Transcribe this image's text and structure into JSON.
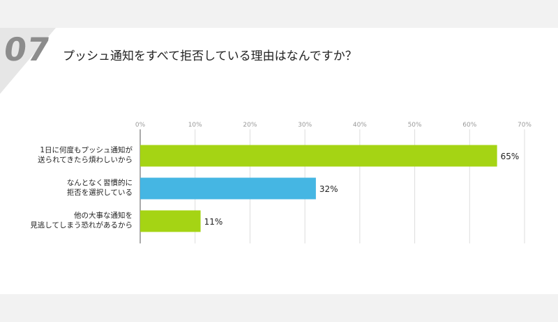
{
  "question": {
    "number": "07",
    "title": "プッシュ通知をすべて拒否している理由はなんですか？"
  },
  "colors": {
    "bar_green": "#a5d414",
    "bar_blue": "#45b6e3",
    "tick_text": "#999999",
    "grid": "#dddddd",
    "number_gray": "#8c8c8c"
  },
  "chart_data": {
    "type": "bar",
    "orientation": "horizontal",
    "xlim": [
      0,
      70
    ],
    "xticks": [
      {
        "value": 0,
        "label": "0%"
      },
      {
        "value": 10,
        "label": "10%"
      },
      {
        "value": 20,
        "label": "20%"
      },
      {
        "value": 30,
        "label": "30%"
      },
      {
        "value": 40,
        "label": "40%"
      },
      {
        "value": 50,
        "label": "50%"
      },
      {
        "value": 60,
        "label": "60%"
      },
      {
        "value": 70,
        "label": "70%"
      }
    ],
    "grid": true,
    "categories": [
      {
        "lines": [
          "1日に何度もプッシュ通知が",
          "送られてきたら煩わしいから"
        ],
        "value": 65,
        "label": "65%",
        "color": "#a5d414"
      },
      {
        "lines": [
          "なんとなく習慣的に",
          "拒否を選択している"
        ],
        "value": 32,
        "label": "32%",
        "color": "#45b6e3"
      },
      {
        "lines": [
          "他の大事な通知を",
          "見逃してしまう恐れがあるから"
        ],
        "value": 11,
        "label": "11%",
        "color": "#a5d414"
      }
    ]
  }
}
